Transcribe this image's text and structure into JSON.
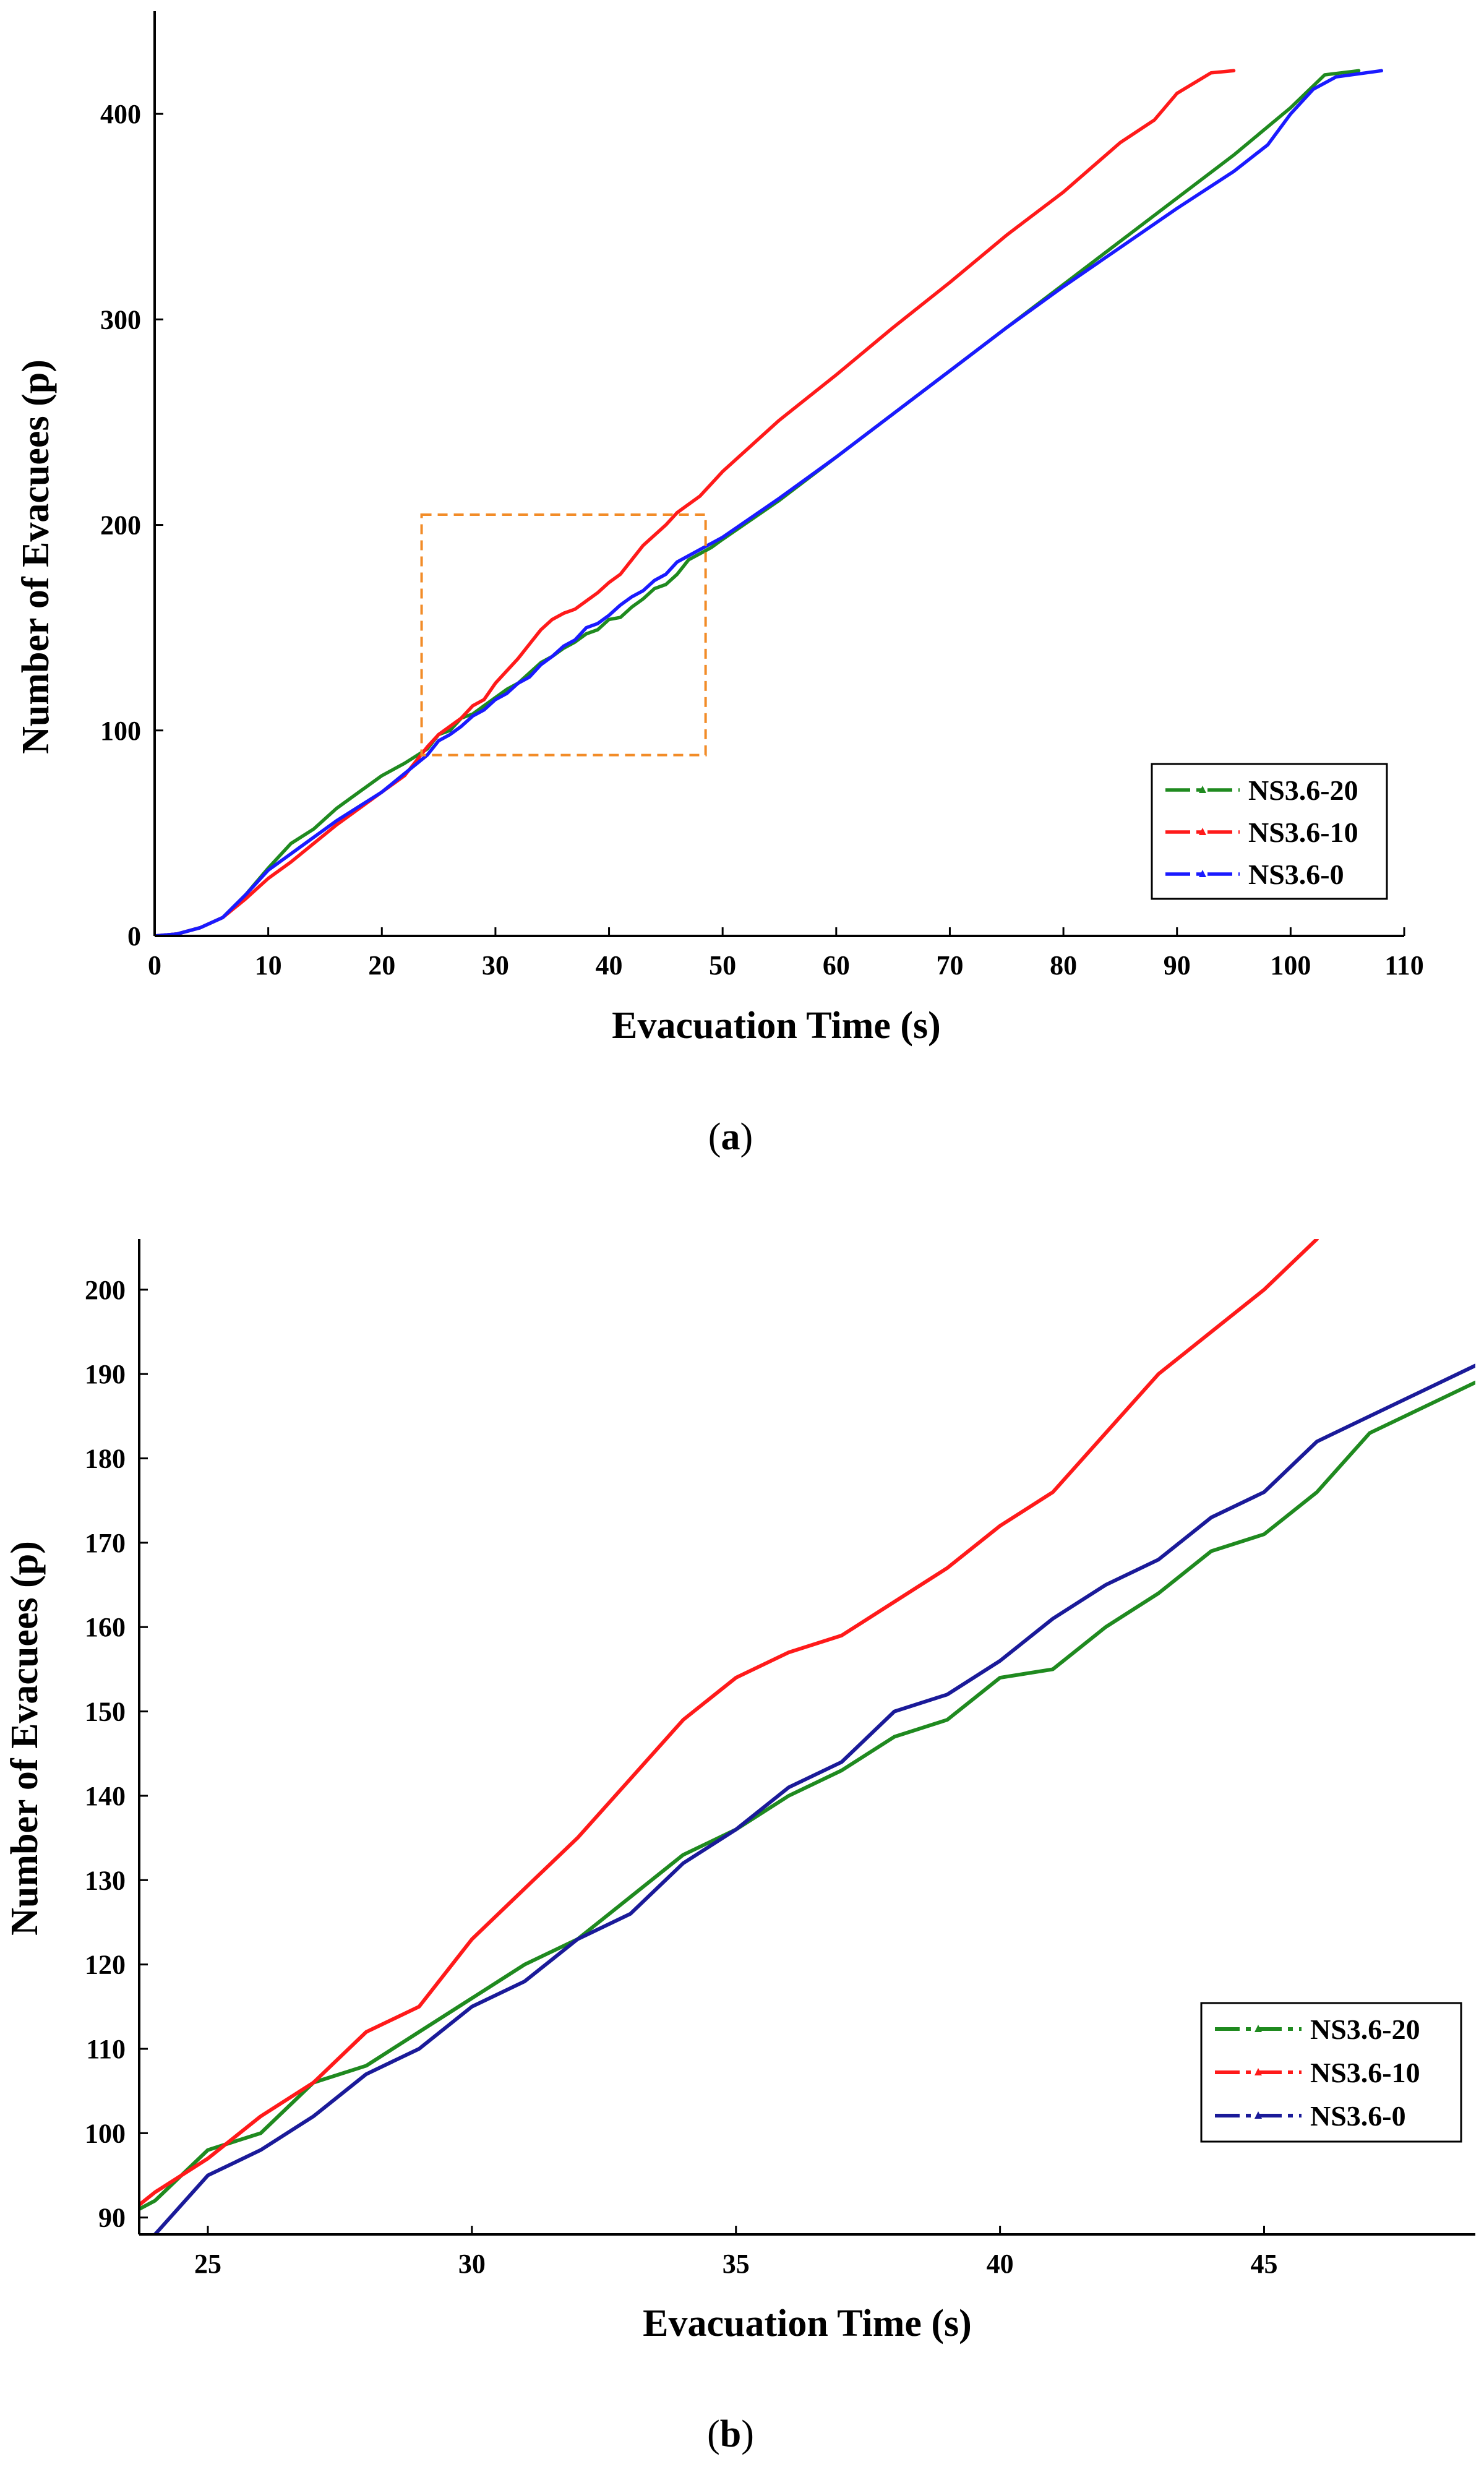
{
  "figure": {
    "captions": {
      "a": "a",
      "b": "b"
    }
  },
  "series_colors": {
    "NS3.6-20": "#1f8a1f",
    "NS3.6-10": "#ff1a1a",
    "NS3.6-0": "#1a1aff",
    "NS3.6-0 (b)": "#1a1a99"
  },
  "chart_data": [
    {
      "id": "a",
      "type": "line",
      "title": "",
      "xlabel": "Evacuation Time (s)",
      "ylabel": "Number of Evacuees (p)",
      "xlim": [
        0,
        110
      ],
      "ylim": [
        0,
        450
      ],
      "xticks": [
        0,
        10,
        20,
        30,
        40,
        50,
        60,
        70,
        80,
        90,
        100,
        110
      ],
      "yticks": [
        0,
        100,
        200,
        300,
        400
      ],
      "legend": {
        "placement": "bottom-right",
        "entries": [
          "NS3.6-20",
          "NS3.6-10",
          "NS3.6-0"
        ]
      },
      "zoom_box": {
        "x": [
          23.5,
          48.5
        ],
        "y": [
          88,
          205
        ]
      },
      "series": [
        {
          "name": "NS3.6-20",
          "color": "#1f8a1f",
          "points": [
            [
              0,
              0
            ],
            [
              2,
              1
            ],
            [
              4,
              4
            ],
            [
              6,
              9
            ],
            [
              8,
              20
            ],
            [
              10,
              33
            ],
            [
              12,
              45
            ],
            [
              14,
              52
            ],
            [
              16,
              62
            ],
            [
              18,
              70
            ],
            [
              20,
              78
            ],
            [
              22,
              84
            ],
            [
              24,
              91
            ],
            [
              25,
              98
            ],
            [
              26,
              100
            ],
            [
              27,
              106
            ],
            [
              28,
              108
            ],
            [
              29,
              112
            ],
            [
              30,
              116
            ],
            [
              31,
              120
            ],
            [
              32,
              123
            ],
            [
              33,
              128
            ],
            [
              34,
              133
            ],
            [
              35,
              136
            ],
            [
              36,
              140
            ],
            [
              37,
              143
            ],
            [
              38,
              147
            ],
            [
              39,
              149
            ],
            [
              40,
              154
            ],
            [
              41,
              155
            ],
            [
              42,
              160
            ],
            [
              43,
              164
            ],
            [
              44,
              169
            ],
            [
              45,
              171
            ],
            [
              46,
              176
            ],
            [
              47,
              183
            ],
            [
              48,
              186
            ],
            [
              49,
              189
            ],
            [
              50,
              193
            ],
            [
              55,
              212
            ],
            [
              60,
              233
            ],
            [
              65,
              254
            ],
            [
              70,
              275
            ],
            [
              75,
              296
            ],
            [
              80,
              317
            ],
            [
              85,
              338
            ],
            [
              90,
              359
            ],
            [
              95,
              380
            ],
            [
              100,
              403
            ],
            [
              103,
              419
            ],
            [
              106,
              421
            ]
          ]
        },
        {
          "name": "NS3.6-10",
          "color": "#ff1a1a",
          "points": [
            [
              0,
              0
            ],
            [
              2,
              1
            ],
            [
              4,
              4
            ],
            [
              6,
              9
            ],
            [
              8,
              18
            ],
            [
              10,
              28
            ],
            [
              12,
              36
            ],
            [
              14,
              45
            ],
            [
              16,
              54
            ],
            [
              18,
              62
            ],
            [
              20,
              70
            ],
            [
              22,
              78
            ],
            [
              24,
              92
            ],
            [
              25,
              98
            ],
            [
              26,
              102
            ],
            [
              27,
              106
            ],
            [
              28,
              112
            ],
            [
              29,
              115
            ],
            [
              30,
              123
            ],
            [
              31,
              129
            ],
            [
              32,
              135
            ],
            [
              33,
              142
            ],
            [
              34,
              149
            ],
            [
              35,
              154
            ],
            [
              36,
              157
            ],
            [
              37,
              159
            ],
            [
              38,
              163
            ],
            [
              39,
              167
            ],
            [
              40,
              172
            ],
            [
              41,
              176
            ],
            [
              42,
              183
            ],
            [
              43,
              190
            ],
            [
              44,
              195
            ],
            [
              45,
              200
            ],
            [
              46,
              206
            ],
            [
              48,
              214
            ],
            [
              50,
              226
            ],
            [
              55,
              251
            ],
            [
              60,
              273
            ],
            [
              65,
              296
            ],
            [
              70,
              318
            ],
            [
              75,
              341
            ],
            [
              80,
              362
            ],
            [
              85,
              386
            ],
            [
              88,
              397
            ],
            [
              90,
              410
            ],
            [
              93,
              420
            ],
            [
              95,
              421
            ]
          ]
        },
        {
          "name": "NS3.6-0",
          "color": "#1a1aff",
          "points": [
            [
              0,
              0
            ],
            [
              2,
              1
            ],
            [
              4,
              4
            ],
            [
              6,
              9
            ],
            [
              8,
              20
            ],
            [
              10,
              32
            ],
            [
              12,
              40
            ],
            [
              14,
              48
            ],
            [
              16,
              56
            ],
            [
              18,
              63
            ],
            [
              20,
              70
            ],
            [
              22,
              79
            ],
            [
              24,
              88
            ],
            [
              25,
              95
            ],
            [
              26,
              98
            ],
            [
              27,
              102
            ],
            [
              28,
              107
            ],
            [
              29,
              110
            ],
            [
              30,
              115
            ],
            [
              31,
              118
            ],
            [
              32,
              123
            ],
            [
              33,
              126
            ],
            [
              34,
              132
            ],
            [
              35,
              136
            ],
            [
              36,
              141
            ],
            [
              37,
              144
            ],
            [
              38,
              150
            ],
            [
              39,
              152
            ],
            [
              40,
              156
            ],
            [
              41,
              161
            ],
            [
              42,
              165
            ],
            [
              43,
              168
            ],
            [
              44,
              173
            ],
            [
              45,
              176
            ],
            [
              46,
              182
            ],
            [
              47,
              185
            ],
            [
              48,
              188
            ],
            [
              49,
              191
            ],
            [
              50,
              194
            ],
            [
              55,
              213
            ],
            [
              60,
              233
            ],
            [
              65,
              254
            ],
            [
              70,
              275
            ],
            [
              75,
              296
            ],
            [
              80,
              316
            ],
            [
              85,
              335
            ],
            [
              90,
              354
            ],
            [
              95,
              372
            ],
            [
              98,
              385
            ],
            [
              100,
              400
            ],
            [
              102,
              412
            ],
            [
              104,
              418
            ],
            [
              108,
              421
            ]
          ]
        }
      ]
    },
    {
      "id": "b",
      "type": "line",
      "title": "",
      "xlabel": "Evacuation Time (s)",
      "ylabel": "Number of Evacuees (p)",
      "xlim": [
        23.7,
        49
      ],
      "ylim": [
        88,
        206
      ],
      "xticks": [
        25,
        30,
        35,
        40,
        45
      ],
      "yticks": [
        90,
        100,
        110,
        120,
        130,
        140,
        150,
        160,
        170,
        180,
        190,
        200
      ],
      "legend": {
        "placement": "bottom-right",
        "entries": [
          "NS3.6-20",
          "NS3.6-10",
          "NS3.6-0"
        ]
      },
      "series": [
        {
          "name": "NS3.6-20",
          "color": "#1f8a1f",
          "points": [
            [
              23.7,
              91
            ],
            [
              24,
              92
            ],
            [
              25,
              98
            ],
            [
              26,
              100
            ],
            [
              27,
              106
            ],
            [
              28,
              108
            ],
            [
              29,
              112
            ],
            [
              30,
              116
            ],
            [
              31,
              120
            ],
            [
              32,
              123
            ],
            [
              33,
              128
            ],
            [
              34,
              133
            ],
            [
              35,
              136
            ],
            [
              36,
              140
            ],
            [
              37,
              143
            ],
            [
              38,
              147
            ],
            [
              39,
              149
            ],
            [
              40,
              154
            ],
            [
              41,
              155
            ],
            [
              42,
              160
            ],
            [
              43,
              164
            ],
            [
              44,
              169
            ],
            [
              45,
              171
            ],
            [
              46,
              176
            ],
            [
              47,
              183
            ],
            [
              48,
              186
            ],
            [
              49,
              189
            ]
          ]
        },
        {
          "name": "NS3.6-10",
          "color": "#ff1a1a",
          "points": [
            [
              23.7,
              91.5
            ],
            [
              24,
              93
            ],
            [
              25,
              97
            ],
            [
              26,
              102
            ],
            [
              27,
              106
            ],
            [
              28,
              112
            ],
            [
              29,
              115
            ],
            [
              30,
              123
            ],
            [
              31,
              129
            ],
            [
              32,
              135
            ],
            [
              33,
              142
            ],
            [
              34,
              149
            ],
            [
              35,
              154
            ],
            [
              36,
              157
            ],
            [
              37,
              159
            ],
            [
              38,
              163
            ],
            [
              39,
              167
            ],
            [
              40,
              172
            ],
            [
              41,
              176
            ],
            [
              42,
              183
            ],
            [
              43,
              190
            ],
            [
              44,
              195
            ],
            [
              45,
              200
            ],
            [
              46,
              206
            ]
          ]
        },
        {
          "name": "NS3.6-0",
          "color": "#1a1a99",
          "points": [
            [
              24,
              88
            ],
            [
              25,
              95
            ],
            [
              26,
              98
            ],
            [
              27,
              102
            ],
            [
              28,
              107
            ],
            [
              29,
              110
            ],
            [
              30,
              115
            ],
            [
              31,
              118
            ],
            [
              32,
              123
            ],
            [
              33,
              126
            ],
            [
              34,
              132
            ],
            [
              35,
              136
            ],
            [
              36,
              141
            ],
            [
              37,
              144
            ],
            [
              38,
              150
            ],
            [
              39,
              152
            ],
            [
              40,
              156
            ],
            [
              41,
              161
            ],
            [
              42,
              165
            ],
            [
              43,
              168
            ],
            [
              44,
              173
            ],
            [
              45,
              176
            ],
            [
              46,
              182
            ],
            [
              47,
              185
            ],
            [
              48,
              188
            ],
            [
              49,
              191
            ]
          ]
        }
      ]
    }
  ]
}
